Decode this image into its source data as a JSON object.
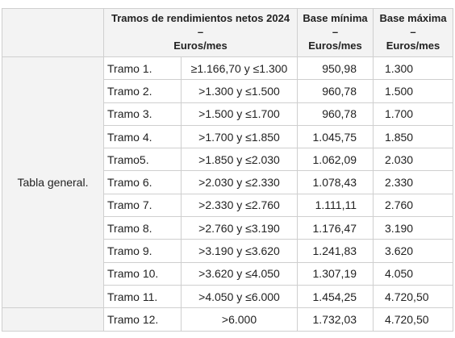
{
  "header": {
    "tramos_title": "Tramos de rendimientos netos 2024",
    "tramos_dash": "–",
    "tramos_unit": "Euros/mes",
    "min_title": "Base mínima",
    "min_dash": "–",
    "min_unit": "Euros/mes",
    "max_title": "Base máxima",
    "max_dash": "–",
    "max_unit": "Euros/mes"
  },
  "general_label": "Tabla general.",
  "rows": [
    {
      "tramo": "Tramo 1.",
      "range": "≥1.166,70 y ≤1.300",
      "min": "950,98",
      "max": "1.300"
    },
    {
      "tramo": "Tramo 2.",
      "range": ">1.300 y ≤1.500",
      "min": "960,78",
      "max": "1.500"
    },
    {
      "tramo": "Tramo 3.",
      "range": ">1.500 y ≤1.700",
      "min": "960,78",
      "max": "1.700"
    },
    {
      "tramo": "Tramo 4.",
      "range": ">1.700 y ≤1.850",
      "min": "1.045,75",
      "max": "1.850"
    },
    {
      "tramo": "Tramo5.",
      "range": ">1.850 y ≤2.030",
      "min": "1.062,09",
      "max": "2.030"
    },
    {
      "tramo": "Tramo 6.",
      "range": ">2.030 y ≤2.330",
      "min": "1.078,43",
      "max": "2.330"
    },
    {
      "tramo": "Tramo 7.",
      "range": ">2.330 y ≤2.760",
      "min": "1.111,11",
      "max": "2.760"
    },
    {
      "tramo": "Tramo 8.",
      "range": ">2.760 y ≤3.190",
      "min": "1.176,47",
      "max": "3.190"
    },
    {
      "tramo": "Tramo 9.",
      "range": ">3.190 y ≤3.620",
      "min": "1.241,83",
      "max": "3.620"
    },
    {
      "tramo": "Tramo 10.",
      "range": ">3.620 y ≤4.050",
      "min": "1.307,19",
      "max": "4.050"
    },
    {
      "tramo": "Tramo 11.",
      "range": ">4.050 y ≤6.000",
      "min": "1.454,25",
      "max": "4.720,50"
    },
    {
      "tramo": "Tramo 12.",
      "range": ">6.000",
      "min": "1.732,03",
      "max": "4.720,50"
    }
  ]
}
